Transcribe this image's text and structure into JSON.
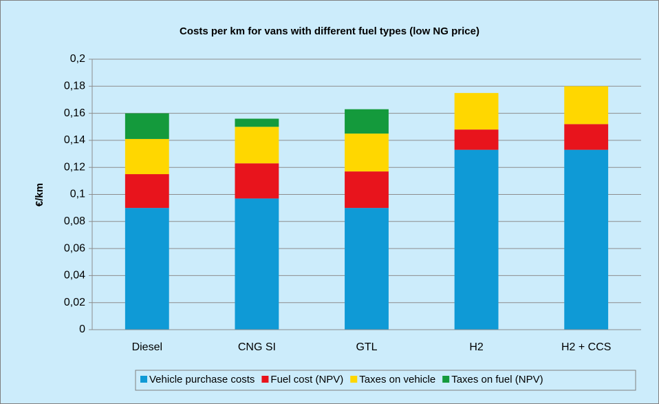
{
  "chart_data": {
    "type": "stacked_bar",
    "title": "Costs per km for vans with different fuel types  (low NG price)",
    "y_label": "€/km",
    "categories": [
      "Diesel",
      "CNG SI",
      "GTL",
      "H2",
      "H2 + CCS"
    ],
    "series": [
      {
        "name": "Vehicle purchase costs",
        "color": "#0f9ad6",
        "values": [
          0.09,
          0.097,
          0.09,
          0.133,
          0.133
        ]
      },
      {
        "name": "Fuel cost (NPV)",
        "color": "#e8141c",
        "values": [
          0.025,
          0.026,
          0.027,
          0.015,
          0.019
        ]
      },
      {
        "name": "Taxes on vehicle",
        "color": "#ffd700",
        "values": [
          0.026,
          0.027,
          0.028,
          0.027,
          0.028
        ]
      },
      {
        "name": "Taxes on fuel (NPV)",
        "color": "#149a3c",
        "values": [
          0.019,
          0.006,
          0.018,
          0,
          0
        ]
      }
    ],
    "ylim": [
      0,
      0.2
    ],
    "yticks": [
      0,
      {
        "value": 0.02,
        "label": "0,02"
      },
      {
        "value": 0.04,
        "label": "0,04"
      },
      {
        "value": 0.06,
        "label": "0,06"
      },
      {
        "value": 0.08,
        "label": "0,08"
      },
      {
        "value": 0.1,
        "label": "0,1"
      },
      {
        "value": 0.12,
        "label": "0,12"
      },
      {
        "value": 0.14,
        "label": "0,14"
      },
      {
        "value": 0.16,
        "label": "0,16"
      },
      {
        "value": 0.18,
        "label": "0,18"
      },
      {
        "value": 0.2,
        "label": "0,2"
      }
    ],
    "grid": true,
    "legend": "bottom"
  }
}
